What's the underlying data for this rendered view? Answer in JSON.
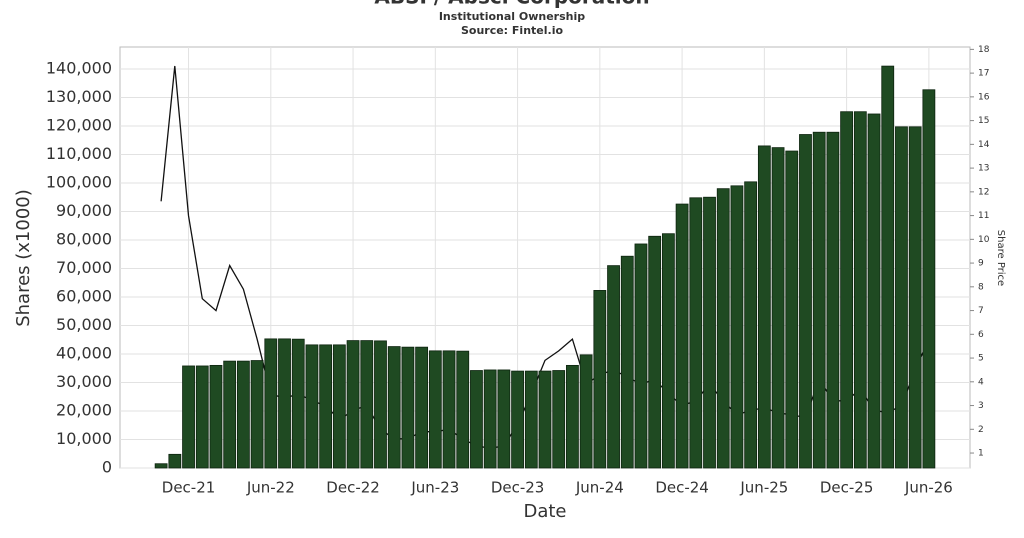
{
  "chart_data": {
    "type": "bar_line",
    "title": "ABSI / Absci Corporation",
    "subtitle": "Institutional Ownership",
    "source": "Source: Fintel.io",
    "x_label": "Date",
    "y_label": "Shares (x1000)",
    "y2_label": "Share Price",
    "x": [
      "2021-10",
      "2021-11",
      "2021-12",
      "2022-01",
      "2022-02",
      "2022-03",
      "2022-04",
      "2022-05",
      "2022-06",
      "2022-07",
      "2022-08",
      "2022-09",
      "2022-10",
      "2022-11",
      "2022-12",
      "2023-01",
      "2023-02",
      "2023-03",
      "2023-04",
      "2023-05",
      "2023-06",
      "2023-07",
      "2023-08",
      "2023-09",
      "2023-10",
      "2023-11",
      "2023-12",
      "2024-01",
      "2024-02",
      "2024-03",
      "2024-04",
      "2024-05",
      "2024-06",
      "2024-07",
      "2024-08",
      "2024-09",
      "2024-10",
      "2024-11",
      "2024-12",
      "2025-01",
      "2025-02",
      "2025-03",
      "2025-04",
      "2025-05",
      "2025-06",
      "2025-07",
      "2025-08",
      "2025-09",
      "2025-10",
      "2025-11",
      "2025-12",
      "2026-01",
      "2026-02",
      "2026-03",
      "2026-04",
      "2026-05",
      "2026-06"
    ],
    "series": [
      {
        "type": "bar",
        "color": "#1f4a22",
        "values": [
          1500,
          4800,
          35800,
          35800,
          36000,
          37500,
          37500,
          37700,
          45300,
          45300,
          45200,
          43200,
          43200,
          43200,
          44700,
          44700,
          44600,
          42600,
          42400,
          42400,
          41100,
          41100,
          41000,
          34200,
          34400,
          34400,
          34000,
          34000,
          34000,
          34200,
          36000,
          39700,
          62300,
          71000,
          74300,
          78600,
          81300,
          82200,
          92600,
          94800,
          95000,
          98000,
          99000,
          100400,
          113000,
          112400,
          111200,
          117000,
          117800,
          117800,
          125000,
          125000,
          124200,
          141000,
          119700,
          119700,
          132700
        ]
      },
      {
        "type": "line",
        "axis": "y2",
        "color": "#111111",
        "values": [
          11.6,
          17.3,
          11.0,
          7.5,
          7.0,
          8.9,
          7.9,
          5.8,
          3.5,
          3.3,
          3.5,
          3.2,
          3.0,
          2.4,
          2.8,
          3.0,
          2.0,
          1.6,
          1.6,
          1.9,
          1.9,
          2.0,
          1.6,
          1.3,
          1.2,
          1.3,
          2.2,
          3.5,
          4.9,
          5.3,
          5.8,
          3.9,
          4.3,
          4.5,
          4.2,
          3.9,
          4.1,
          3.5,
          3.0,
          3.2,
          3.9,
          3.2,
          2.6,
          2.8,
          2.9,
          2.7,
          2.6,
          2.5,
          4.1,
          3.2,
          3.2,
          3.7,
          2.8,
          2.7,
          3.0,
          4.5,
          5.8
        ]
      }
    ],
    "xlim": [
      "2021-07",
      "2026-09"
    ],
    "xticks": [
      {
        "value": "2021-12",
        "label": "Dec-21"
      },
      {
        "value": "2022-06",
        "label": "Jun-22"
      },
      {
        "value": "2022-12",
        "label": "Dec-22"
      },
      {
        "value": "2023-06",
        "label": "Jun-23"
      },
      {
        "value": "2023-12",
        "label": "Dec-23"
      },
      {
        "value": "2024-06",
        "label": "Jun-24"
      },
      {
        "value": "2024-12",
        "label": "Dec-24"
      },
      {
        "value": "2025-06",
        "label": "Jun-25"
      },
      {
        "value": "2025-12",
        "label": "Dec-25"
      },
      {
        "value": "2026-06",
        "label": "Jun-26"
      }
    ],
    "ylim": [
      0,
      147700
    ],
    "yticks": [
      0,
      {
        "value": 10000,
        "label": "10,000"
      },
      {
        "value": 20000,
        "label": "20,000"
      },
      {
        "value": 30000,
        "label": "30,000"
      },
      {
        "value": 40000,
        "label": "40,000"
      },
      {
        "value": 50000,
        "label": "50,000"
      },
      {
        "value": 60000,
        "label": "60,000"
      },
      {
        "value": 70000,
        "label": "70,000"
      },
      {
        "value": 80000,
        "label": "80,000"
      },
      {
        "value": 90000,
        "label": "90,000"
      },
      {
        "value": 100000,
        "label": "100,000"
      },
      {
        "value": 110000,
        "label": "110,000"
      },
      {
        "value": 120000,
        "label": "120,000"
      },
      {
        "value": 130000,
        "label": "130,000"
      },
      {
        "value": 140000,
        "label": "140,000"
      }
    ],
    "y2lim": [
      0.37,
      18.1
    ],
    "y2ticks": [
      1,
      2,
      3,
      4,
      5,
      6,
      7,
      8,
      9,
      10,
      11,
      12,
      13,
      14,
      15,
      16,
      17,
      18
    ],
    "grid": true
  }
}
